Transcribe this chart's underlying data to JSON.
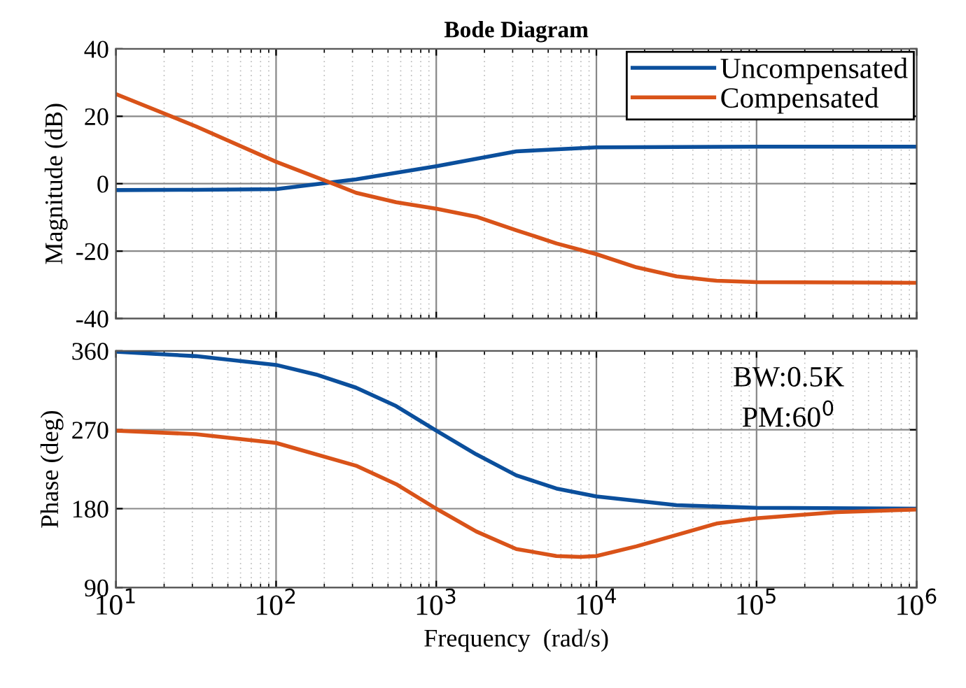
{
  "chart_data": [
    {
      "type": "line",
      "title": "Bode Diagram",
      "ylabel": "Magnitude (dB)",
      "log": "x",
      "grid": true,
      "legend": "top right",
      "tick_labels": "y",
      "xlim": [
        10,
        1000000
      ],
      "xticks": [
        {
          "value": 10,
          "label": null
        },
        {
          "value": 100,
          "label": null
        },
        {
          "value": 1000,
          "label": null
        },
        {
          "value": 10000,
          "label": null
        },
        {
          "value": 100000,
          "label": null
        },
        {
          "value": 1000000,
          "label": null
        }
      ],
      "ylim": [
        -40,
        40
      ],
      "yticks": [
        -40,
        -20,
        0,
        20,
        40
      ],
      "series": [
        {
          "name": "Uncompensated",
          "color": "#0b4f9c",
          "x": [
            10,
            31.6,
            100,
            316,
            1000,
            3162,
            10000,
            100000,
            1000000
          ],
          "values": [
            -1.9,
            -1.8,
            -1.6,
            1.3,
            5.2,
            9.6,
            10.8,
            11,
            11
          ]
        },
        {
          "name": "Compensated",
          "color": "#d95319",
          "x": [
            10,
            31.6,
            100,
            251,
            316,
            562,
            1000,
            1778,
            3162,
            5623,
            10000,
            17783,
            31623,
            56234,
            100000,
            1000000
          ],
          "values": [
            26.6,
            17,
            6.5,
            -0.8,
            -2.7,
            -5.5,
            -7.4,
            -9.8,
            -13.8,
            -17.7,
            -20.9,
            -24.8,
            -27.5,
            -28.8,
            -29.2,
            -29.4
          ]
        }
      ]
    },
    {
      "type": "line",
      "xlabel": "Frequency  (rad/s)",
      "ylabel": "Phase (deg)",
      "log": "x",
      "grid": true,
      "annotations": [
        "BW:0.5K",
        "PM:60$^{0}$"
      ],
      "xlim": [
        10,
        1000000
      ],
      "xticks": [
        {
          "value": 10,
          "label": "10$^{1}$"
        },
        {
          "value": 100,
          "label": "10$^{2}$"
        },
        {
          "value": 1000,
          "label": "10$^{3}$"
        },
        {
          "value": 10000,
          "label": "10$^{4}$"
        },
        {
          "value": 100000,
          "label": "10$^{5}$"
        },
        {
          "value": 1000000,
          "label": "10$^{6}$"
        }
      ],
      "ylim": [
        90,
        360
      ],
      "yticks": [
        90,
        180,
        270,
        360
      ],
      "series": [
        {
          "color": "#0b4f9c",
          "x": [
            10,
            31.6,
            100,
            178,
            316,
            562,
            1000,
            1778,
            3162,
            5623,
            10000,
            31623,
            100000,
            1000000
          ],
          "values": [
            359,
            354,
            344,
            333,
            318,
            297,
            269,
            242,
            218,
            203,
            194,
            184,
            181,
            180
          ]
        },
        {
          "color": "#d95319",
          "x": [
            10,
            31.6,
            100,
            316,
            562,
            1000,
            1778,
            3162,
            5623,
            7943,
            10000,
            17783,
            31623,
            56234,
            100000,
            316228,
            1000000
          ],
          "values": [
            269,
            265,
            255,
            229,
            208,
            180,
            154,
            134,
            126,
            125,
            126,
            137,
            150,
            163,
            169,
            176,
            179
          ]
        }
      ]
    }
  ]
}
